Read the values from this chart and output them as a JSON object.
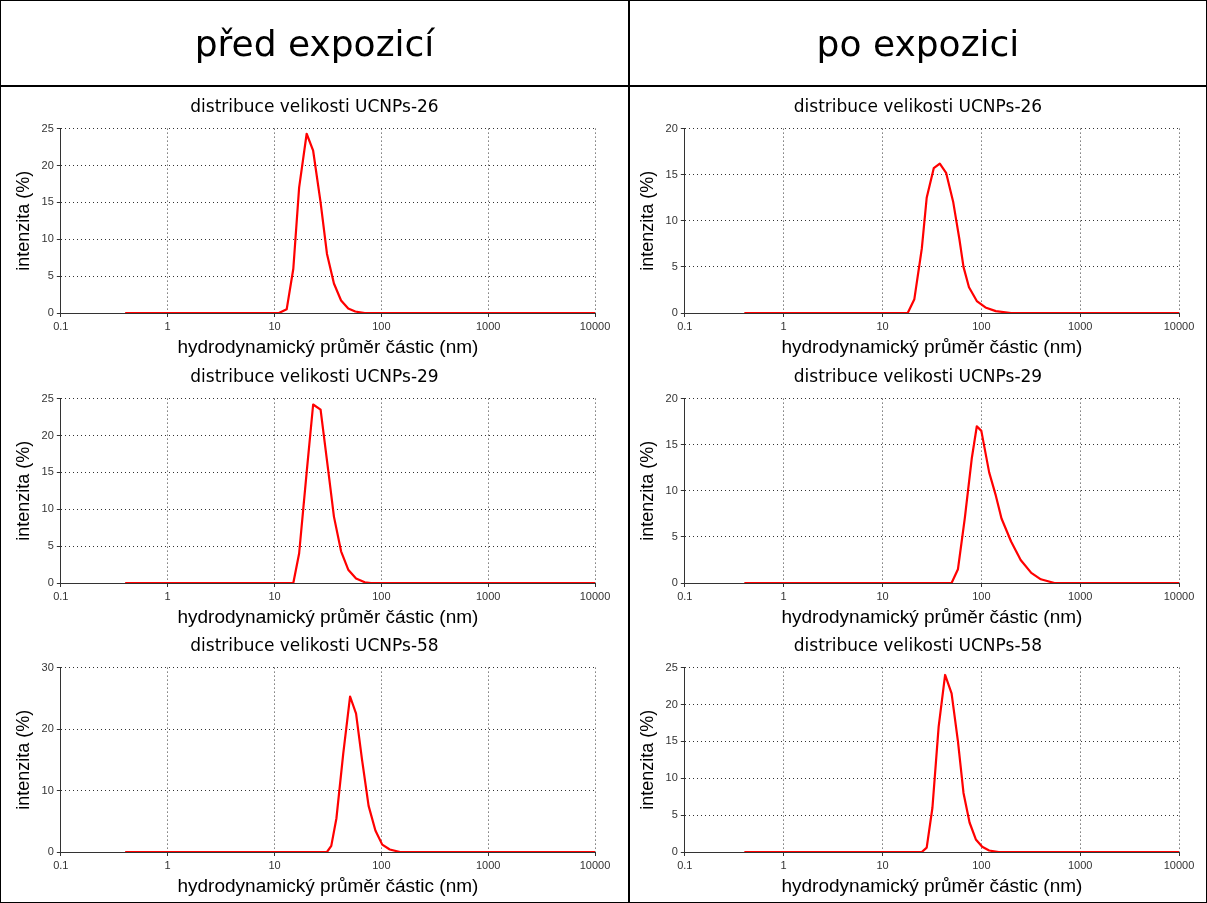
{
  "chart_data": [
    {
      "type": "line",
      "title": "distribuce velikosti UCNPs-26",
      "annotations": [
        "před expozicí"
      ],
      "xlabel": "hydrodynamický průměr částic (nm)",
      "ylabel": "intenzita (%)",
      "log": "x",
      "grid": true,
      "xlim": [
        0.1,
        10000
      ],
      "xticks": [
        0.1,
        1,
        10,
        100,
        1000,
        10000
      ],
      "ylim": [
        0,
        25
      ],
      "yticks": [
        0,
        5,
        10,
        15,
        20,
        25
      ],
      "series": [
        {
          "color": "#ff0000",
          "x": [
            0.4,
            11,
            13,
            15,
            17,
            20,
            23,
            27,
            31,
            36,
            42,
            49,
            57,
            70,
            10000
          ],
          "values": [
            0,
            0,
            0.5,
            6,
            17,
            24.3,
            22,
            15,
            8,
            4,
            1.7,
            0.6,
            0.2,
            0,
            0
          ]
        }
      ]
    },
    {
      "type": "line",
      "title": "distribuce velikosti UCNPs-26",
      "annotations": [
        "po expozici"
      ],
      "xlabel": "hydrodynamický průměr částic (nm)",
      "ylabel": "intenzita (%)",
      "log": "x",
      "grid": true,
      "xlim": [
        0.1,
        10000
      ],
      "xticks": [
        0.1,
        1,
        10,
        100,
        1000,
        10000
      ],
      "ylim": [
        0,
        20
      ],
      "yticks": [
        0,
        5,
        10,
        15,
        20
      ],
      "series": [
        {
          "color": "#ff0000",
          "x": [
            0.4,
            18,
            21,
            25,
            28,
            33,
            38,
            44,
            52,
            60,
            66,
            75,
            90,
            110,
            140,
            200,
            10000
          ],
          "values": [
            0,
            0,
            1.5,
            7,
            12.5,
            15.7,
            16.2,
            15.2,
            12,
            8,
            5,
            2.8,
            1.3,
            0.6,
            0.2,
            0,
            0
          ]
        }
      ]
    },
    {
      "type": "line",
      "title": "distribuce velikosti UCNPs-29",
      "xlabel": "hydrodynamický průměr částic (nm)",
      "ylabel": "intenzita (%)",
      "log": "x",
      "grid": true,
      "xlim": [
        0.1,
        10000
      ],
      "xticks": [
        0.1,
        1,
        10,
        100,
        1000,
        10000
      ],
      "ylim": [
        0,
        25
      ],
      "yticks": [
        0,
        5,
        10,
        15,
        20,
        25
      ],
      "series": [
        {
          "color": "#ff0000",
          "x": [
            0.4,
            15,
            17,
            20,
            23,
            27,
            32,
            36,
            42,
            49,
            58,
            70,
            80,
            10000
          ],
          "values": [
            0,
            0,
            4,
            15,
            24.2,
            23.5,
            15,
            9,
            4.3,
            1.8,
            0.6,
            0.1,
            0,
            0
          ]
        }
      ]
    },
    {
      "type": "line",
      "title": "distribuce velikosti UCNPs-29",
      "xlabel": "hydrodynamický průměr částic (nm)",
      "ylabel": "intenzita (%)",
      "log": "x",
      "grid": true,
      "xlim": [
        0.1,
        10000
      ],
      "xticks": [
        0.1,
        1,
        10,
        100,
        1000,
        10000
      ],
      "ylim": [
        0,
        20
      ],
      "yticks": [
        0,
        5,
        10,
        15,
        20
      ],
      "series": [
        {
          "color": "#ff0000",
          "x": [
            0.4,
            50,
            58,
            68,
            80,
            90,
            100,
            120,
            140,
            160,
            200,
            250,
            320,
            400,
            550,
            10000
          ],
          "values": [
            0,
            0,
            1.5,
            7,
            13.5,
            17,
            16.5,
            12,
            9.5,
            7,
            4.5,
            2.5,
            1.1,
            0.4,
            0,
            0
          ]
        }
      ]
    },
    {
      "type": "line",
      "title": "distribuce velikosti UCNPs-58",
      "xlabel": "hydrodynamický průměr částic (nm)",
      "ylabel": "intenzita (%)",
      "log": "x",
      "grid": true,
      "xlim": [
        0.1,
        10000
      ],
      "xticks": [
        0.1,
        1,
        10,
        100,
        1000,
        10000
      ],
      "ylim": [
        0,
        30
      ],
      "yticks": [
        0,
        10,
        20,
        30
      ],
      "series": [
        {
          "color": "#ff0000",
          "x": [
            0.4,
            31,
            34,
            38,
            44,
            51,
            58,
            66,
            76,
            88,
            102,
            120,
            150,
            10000
          ],
          "values": [
            0,
            0,
            1,
            5.5,
            16,
            25.3,
            22.5,
            15,
            7.5,
            3.5,
            1.2,
            0.4,
            0,
            0
          ]
        }
      ]
    },
    {
      "type": "line",
      "title": "distribuce velikosti UCNPs-58",
      "xlabel": "hydrodynamický průměr částic (nm)",
      "ylabel": "intenzita (%)",
      "log": "x",
      "grid": true,
      "xlim": [
        0.1,
        10000
      ],
      "xticks": [
        0.1,
        1,
        10,
        100,
        1000,
        10000
      ],
      "ylim": [
        0,
        25
      ],
      "yticks": [
        0,
        5,
        10,
        15,
        20,
        25
      ],
      "series": [
        {
          "color": "#ff0000",
          "x": [
            0.4,
            25,
            28,
            32,
            37,
            43,
            50,
            58,
            66,
            76,
            88,
            102,
            120,
            150,
            10000
          ],
          "values": [
            0,
            0,
            0.6,
            6,
            17,
            24,
            21.5,
            15,
            8,
            4,
            1.7,
            0.7,
            0.2,
            0,
            0
          ]
        }
      ]
    }
  ]
}
